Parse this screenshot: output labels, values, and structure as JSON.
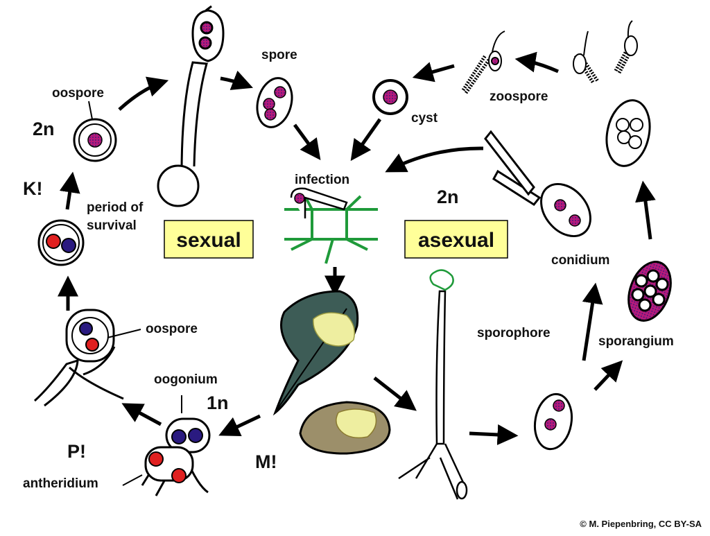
{
  "colors": {
    "box_fill": "#ffff99",
    "outline": "#000000",
    "nucleus_red": "#e02020",
    "nucleus_blue": "#2a1a80",
    "nucleus_diploid": "#b51a7a",
    "plant_green": "#1f9a3a",
    "leaf": "#3d5c56",
    "lesion": "#eeeea0",
    "potato": "#9c8f6a"
  },
  "labels": {
    "sexual": "sexual",
    "asexual": "asexual",
    "spore": "spore",
    "oospore_top": "oospore",
    "two_n_left": "2n",
    "k_mark": "K!",
    "period_of": "period of",
    "survival": "survival",
    "oospore_lower": "oospore",
    "oogonium": "oogonium",
    "one_n": "1n",
    "p_mark": "P!",
    "antheridium": "antheridium",
    "m_mark": "M!",
    "infection": "infection",
    "cyst": "cyst",
    "zoospore": "zoospore",
    "two_n_right": "2n",
    "conidium": "conidium",
    "sporophore": "sporophore",
    "sporangium": "sporangium"
  },
  "credit": "© M. Piepenbring, CC BY-SA"
}
